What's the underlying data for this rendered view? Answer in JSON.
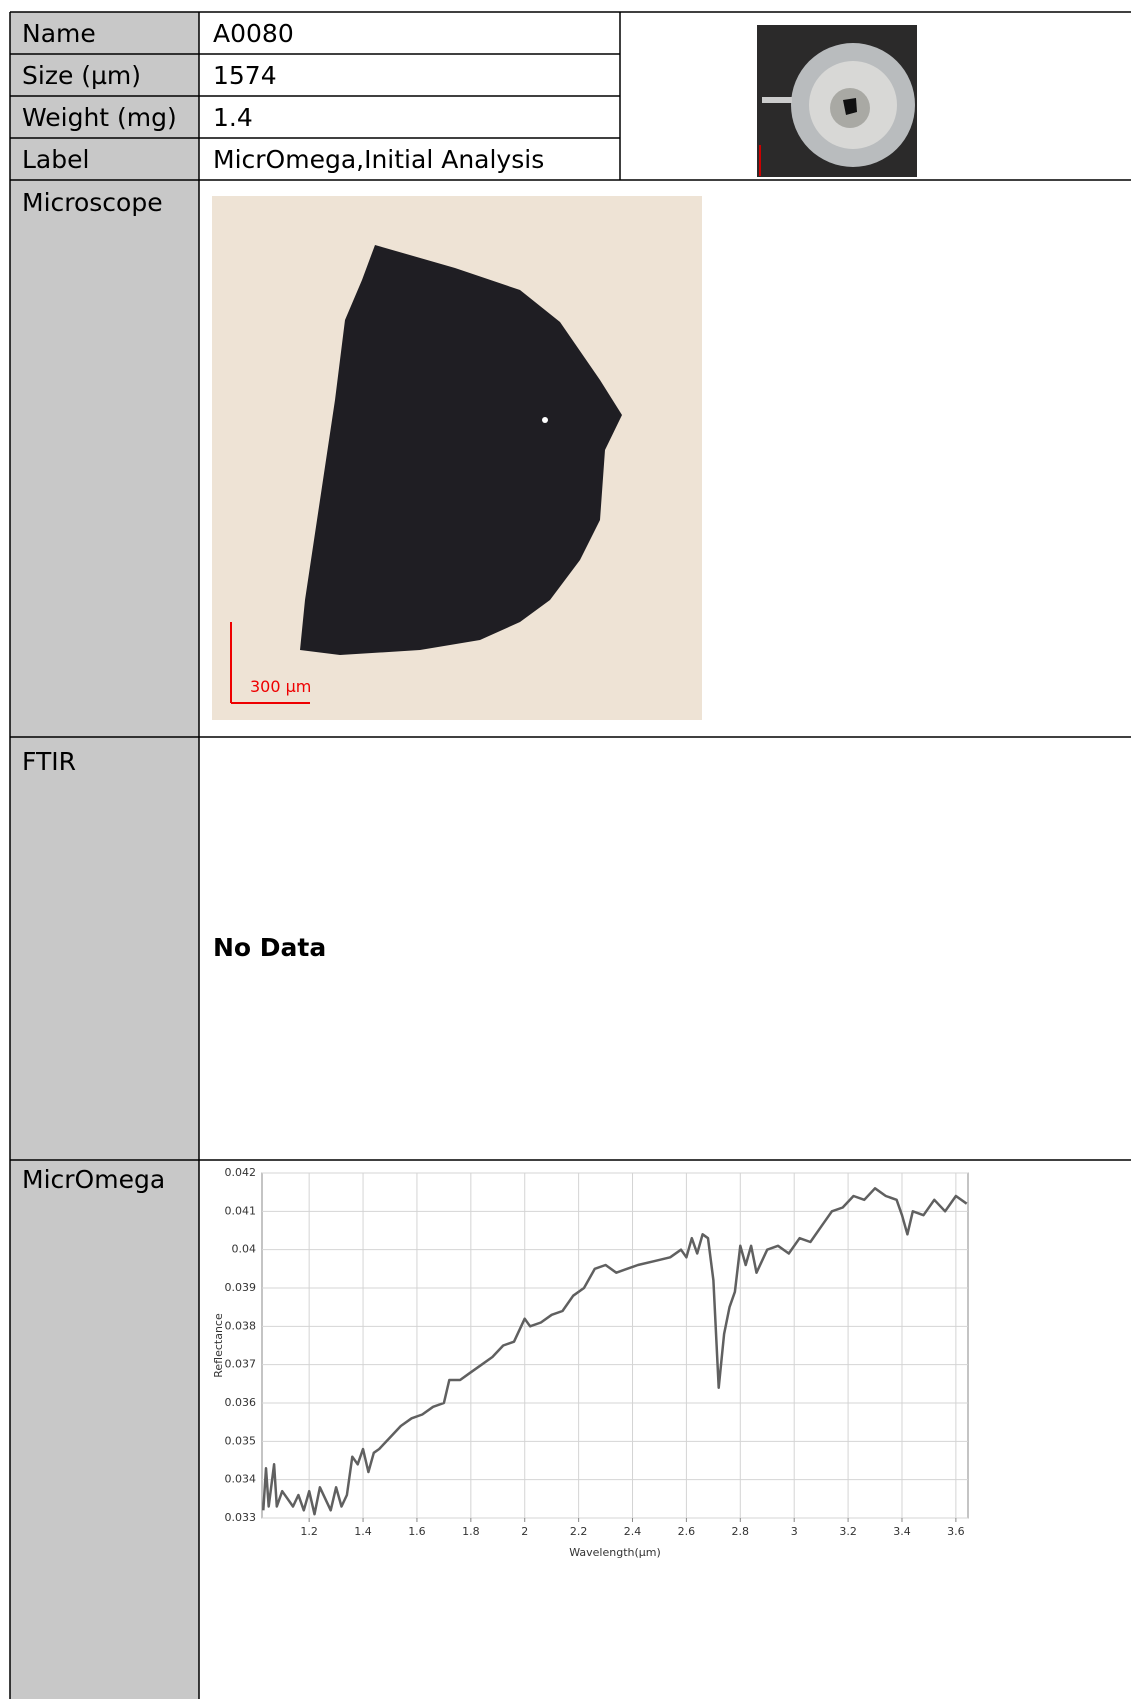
{
  "rows": [
    [
      "Name",
      "A0080"
    ],
    [
      "Size (µm)",
      "1574"
    ],
    [
      "Weight (mg)",
      "1.4"
    ],
    [
      "Label",
      "MicrOmega,Initial Analysis"
    ],
    [
      "Microscope"
    ],
    [
      "FTIR",
      "No Data"
    ],
    [
      "MicrOmega"
    ]
  ],
  "scale_bar": "300 µm",
  "chart_data": {
    "type": "line",
    "x_label": "Wavelength(µm)",
    "y_label": "Reflectance",
    "xlim": [
      1.025,
      3.645
    ],
    "ylim": [
      0.033,
      0.042
    ],
    "xticks": [
      1.2,
      1.4,
      1.6,
      1.8,
      2,
      2.2,
      2.4,
      2.6,
      2.8,
      3,
      3.2,
      3.4,
      3.6
    ],
    "yticks": [
      0.033,
      0.034,
      0.035,
      0.036,
      0.037,
      0.038,
      0.039,
      0.04,
      0.041,
      0.042
    ],
    "grid": true,
    "color": "#606060",
    "x": [
      1.03,
      1.04,
      1.05,
      1.07,
      1.08,
      1.1,
      1.12,
      1.14,
      1.16,
      1.18,
      1.2,
      1.22,
      1.24,
      1.26,
      1.28,
      1.3,
      1.32,
      1.34,
      1.36,
      1.38,
      1.4,
      1.42,
      1.44,
      1.46,
      1.5,
      1.54,
      1.58,
      1.62,
      1.66,
      1.7,
      1.72,
      1.76,
      1.8,
      1.84,
      1.88,
      1.92,
      1.96,
      2.0,
      2.02,
      2.06,
      2.1,
      2.14,
      2.18,
      2.22,
      2.26,
      2.3,
      2.34,
      2.38,
      2.42,
      2.48,
      2.54,
      2.58,
      2.6,
      2.62,
      2.64,
      2.66,
      2.68,
      2.7,
      2.72,
      2.74,
      2.76,
      2.78,
      2.8,
      2.82,
      2.84,
      2.86,
      2.9,
      2.94,
      2.98,
      3.02,
      3.06,
      3.1,
      3.14,
      3.18,
      3.22,
      3.26,
      3.3,
      3.34,
      3.38,
      3.4,
      3.42,
      3.44,
      3.48,
      3.52,
      3.56,
      3.6,
      3.64
    ],
    "values": [
      0.0332,
      0.0343,
      0.0333,
      0.0344,
      0.0333,
      0.0337,
      0.0335,
      0.0333,
      0.0336,
      0.0332,
      0.0337,
      0.0331,
      0.0338,
      0.0335,
      0.0332,
      0.0338,
      0.0333,
      0.0336,
      0.0346,
      0.0344,
      0.0348,
      0.0342,
      0.0347,
      0.0348,
      0.0351,
      0.0354,
      0.0356,
      0.0357,
      0.0359,
      0.036,
      0.0366,
      0.0366,
      0.0368,
      0.037,
      0.0372,
      0.0375,
      0.0376,
      0.0382,
      0.038,
      0.0381,
      0.0383,
      0.0384,
      0.0388,
      0.039,
      0.0395,
      0.0396,
      0.0394,
      0.0395,
      0.0396,
      0.0397,
      0.0398,
      0.04,
      0.0398,
      0.0403,
      0.0399,
      0.0404,
      0.0403,
      0.0392,
      0.0364,
      0.0378,
      0.0385,
      0.0389,
      0.0401,
      0.0396,
      0.0401,
      0.0394,
      0.04,
      0.0401,
      0.0399,
      0.0403,
      0.0402,
      0.0406,
      0.041,
      0.0411,
      0.0414,
      0.0413,
      0.0416,
      0.0414,
      0.0413,
      0.0409,
      0.0404,
      0.041,
      0.0409,
      0.0413,
      0.041,
      0.0414,
      0.0412
    ]
  }
}
